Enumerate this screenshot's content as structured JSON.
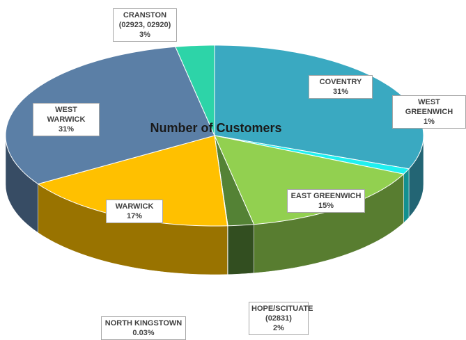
{
  "chart_data": {
    "type": "pie3d",
    "title": "Number of Customers",
    "categories": [
      "COVENTRY",
      "WEST GREENWICH",
      "EAST GREENWICH",
      "HOPE/SCITUATE (02831)",
      "NORTH KINGSTOWN",
      "WARWICK",
      "WEST WARWICK",
      "CRANSTON (02923, 02920)"
    ],
    "values": [
      31,
      1,
      15,
      2,
      0.03,
      17,
      31,
      3
    ],
    "value_labels": [
      "31%",
      "1%",
      "15%",
      "2%",
      "0.03%",
      "17%",
      "31%",
      "3%"
    ],
    "colors": [
      "#3aa9c1",
      "#1ff0f0",
      "#92d050",
      "#548235",
      "#7f6000",
      "#ffc000",
      "#5b7fa6",
      "#2dd4a8"
    ]
  }
}
